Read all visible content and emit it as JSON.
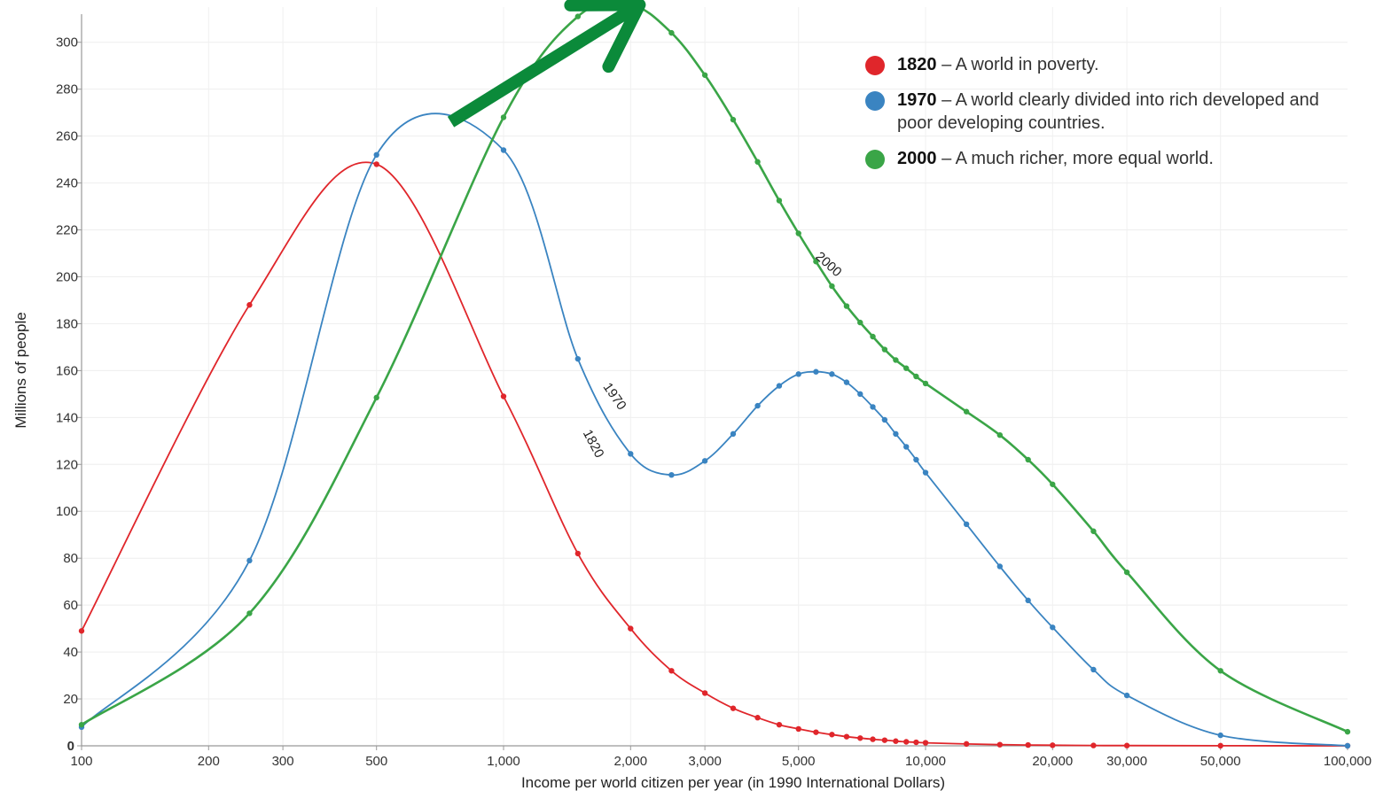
{
  "chart_data": {
    "type": "line",
    "xscale": "log",
    "xlim": [
      100,
      100000
    ],
    "ylim": [
      0,
      315
    ],
    "xlabel": "Income per world citizen per year (in 1990 International Dollars)",
    "ylabel": "Millions of people",
    "x_ticks": [
      "100",
      "200",
      "300",
      "500",
      "1,000",
      "2,000",
      "3,000",
      "5,000",
      "10,000",
      "20,000",
      "30,000",
      "50,000",
      "100,000"
    ],
    "x_tick_values": [
      100,
      200,
      300,
      500,
      1000,
      2000,
      3000,
      5000,
      10000,
      20000,
      30000,
      50000,
      100000
    ],
    "y_ticks": [
      "0",
      "20",
      "40",
      "60",
      "80",
      "100",
      "120",
      "140",
      "160",
      "180",
      "200",
      "220",
      "240",
      "260",
      "280",
      "300"
    ],
    "y_tick_values": [
      0,
      20,
      40,
      60,
      80,
      100,
      120,
      140,
      160,
      180,
      200,
      220,
      240,
      260,
      280,
      300
    ],
    "grid": true,
    "series": [
      {
        "name": "1820",
        "color": "#e0262b",
        "points": [
          [
            100,
            49
          ],
          [
            250,
            188
          ],
          [
            500,
            248
          ],
          [
            1000,
            149
          ],
          [
            1500,
            82
          ],
          [
            2000,
            50
          ],
          [
            2500,
            32
          ],
          [
            3000,
            22.5
          ],
          [
            3500,
            16
          ],
          [
            4000,
            12
          ],
          [
            4500,
            9
          ],
          [
            5000,
            7.2
          ],
          [
            5500,
            5.8
          ],
          [
            6000,
            4.8
          ],
          [
            6500,
            3.9
          ],
          [
            7000,
            3.3
          ],
          [
            7500,
            2.8
          ],
          [
            8000,
            2.4
          ],
          [
            8500,
            2
          ],
          [
            9000,
            1.7
          ],
          [
            9500,
            1.5
          ],
          [
            10000,
            1.3
          ],
          [
            12500,
            0.8
          ],
          [
            15000,
            0.5
          ],
          [
            17500,
            0.35
          ],
          [
            20000,
            0.25
          ],
          [
            25000,
            0.15
          ],
          [
            30000,
            0.1
          ],
          [
            50000,
            0.05
          ],
          [
            100000,
            0
          ]
        ]
      },
      {
        "name": "1970",
        "color": "#3a84c1",
        "points": [
          [
            100,
            8
          ],
          [
            250,
            79
          ],
          [
            500,
            252
          ],
          [
            1000,
            254
          ],
          [
            1500,
            165
          ],
          [
            2000,
            124.5
          ],
          [
            2500,
            115.5
          ],
          [
            3000,
            121.5
          ],
          [
            3500,
            133
          ],
          [
            4000,
            145
          ],
          [
            4500,
            153.5
          ],
          [
            5000,
            158.5
          ],
          [
            5500,
            159.5
          ],
          [
            6000,
            158.5
          ],
          [
            6500,
            155
          ],
          [
            7000,
            150
          ],
          [
            7500,
            144.5
          ],
          [
            8000,
            139
          ],
          [
            8500,
            133
          ],
          [
            9000,
            127.5
          ],
          [
            9500,
            122
          ],
          [
            10000,
            116.5
          ],
          [
            12500,
            94.5
          ],
          [
            15000,
            76.5
          ],
          [
            17500,
            62
          ],
          [
            20000,
            50.5
          ],
          [
            25000,
            32.5
          ],
          [
            30000,
            21.5
          ],
          [
            50000,
            4.5
          ],
          [
            100000,
            0
          ]
        ]
      },
      {
        "name": "2000",
        "color": "#3aa547",
        "points": [
          [
            100,
            9
          ],
          [
            250,
            56.5
          ],
          [
            500,
            148.5
          ],
          [
            1000,
            268
          ],
          [
            1500,
            311
          ],
          [
            2000,
            316
          ],
          [
            2500,
            304
          ],
          [
            3000,
            286
          ],
          [
            3500,
            267
          ],
          [
            4000,
            249
          ],
          [
            4500,
            232.5
          ],
          [
            5000,
            218.5
          ],
          [
            5500,
            206.5
          ],
          [
            6000,
            196
          ],
          [
            6500,
            187.5
          ],
          [
            7000,
            180.5
          ],
          [
            7500,
            174.5
          ],
          [
            8000,
            169
          ],
          [
            8500,
            164.5
          ],
          [
            9000,
            161
          ],
          [
            9500,
            157.5
          ],
          [
            10000,
            154.5
          ],
          [
            12500,
            142.5
          ],
          [
            15000,
            132.5
          ],
          [
            17500,
            122
          ],
          [
            20000,
            111.5
          ],
          [
            25000,
            91.5
          ],
          [
            30000,
            74
          ],
          [
            50000,
            32
          ],
          [
            100000,
            6
          ]
        ]
      }
    ],
    "curve_labels": [
      {
        "text": "1820",
        "x": 1600,
        "y": 128,
        "rotate": 62
      },
      {
        "text": "1970",
        "x": 1800,
        "y": 148,
        "rotate": 55
      },
      {
        "text": "2000",
        "x": 5800,
        "y": 204,
        "rotate": 42
      }
    ],
    "annotation_arrow": {
      "color": "#0b8a3a",
      "from": [
        750,
        266
      ],
      "to": [
        2100,
        316
      ]
    },
    "legend": [
      {
        "year": "1820",
        "text": "– A world in poverty.",
        "color": "#e0262b"
      },
      {
        "year": "1970",
        "text": "– A world clearly divided into rich developed and poor developing countries.",
        "color": "#3a84c1"
      },
      {
        "year": "2000",
        "text": "– A much richer, more equal world.",
        "color": "#3aa547"
      }
    ]
  }
}
